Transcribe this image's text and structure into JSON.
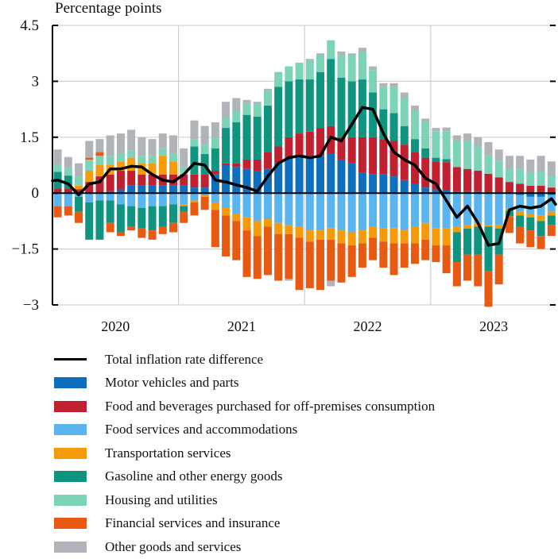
{
  "chart_data": {
    "type": "bar",
    "subtype": "stacked-bar-with-line",
    "title": "",
    "ylabel": "Percentage points",
    "xlabel": "",
    "ylim": [
      -3,
      4.5
    ],
    "yticks": [
      4.5,
      3,
      1.5,
      0,
      -1.5,
      -3
    ],
    "ytick_labels": [
      "4.5",
      "3",
      "1.5",
      "0",
      "−1.5",
      "−3"
    ],
    "x_year_labels": [
      "2020",
      "2021",
      "2022",
      "2023"
    ],
    "frequency": "monthly",
    "x_start": "2020-01",
    "x_end": "2023-12",
    "grid": "vertical year separators and horizontal at y ticks",
    "legend_position": "bottom",
    "series": [
      {
        "name": "Motor vehicles and parts",
        "color": "#0f6fbf",
        "values": [
          0.02,
          0.02,
          0.0,
          0.0,
          0.0,
          0.05,
          0.1,
          0.2,
          0.2,
          0.2,
          0.2,
          0.2,
          0.2,
          0.15,
          0.15,
          0.5,
          0.75,
          0.7,
          0.65,
          0.6,
          0.65,
          0.8,
          0.95,
          1.0,
          1.0,
          1.0,
          1.05,
          0.9,
          0.8,
          0.55,
          0.5,
          0.5,
          0.45,
          0.35,
          0.25,
          0.15,
          0.1,
          0.08,
          0.05,
          0.05,
          0.05,
          0.02,
          0.02,
          -0.02,
          -0.05,
          -0.1,
          -0.1,
          -0.05
        ]
      },
      {
        "name": "Food and beverages purchased for off-premises consumption",
        "color": "#c0202f",
        "values": [
          0.1,
          0.1,
          0.1,
          0.3,
          0.45,
          0.45,
          0.5,
          0.4,
          0.3,
          0.3,
          0.3,
          0.3,
          0.3,
          0.35,
          0.35,
          0.1,
          0.05,
          0.1,
          0.25,
          0.3,
          0.45,
          0.45,
          0.55,
          0.6,
          0.65,
          0.75,
          0.75,
          0.6,
          0.7,
          0.95,
          1.0,
          0.95,
          0.95,
          0.95,
          0.85,
          0.8,
          0.75,
          0.75,
          0.65,
          0.6,
          0.55,
          0.5,
          0.4,
          0.3,
          0.25,
          0.2,
          0.2,
          0.15
        ]
      },
      {
        "name": "Food services and accommodations",
        "color": "#5ab4f0",
        "values": [
          -0.35,
          -0.35,
          -0.1,
          -0.25,
          -0.2,
          -0.2,
          -0.3,
          -0.35,
          -0.4,
          -0.35,
          -0.35,
          -0.3,
          -0.3,
          -0.2,
          -0.05,
          -0.25,
          -0.4,
          -0.55,
          -0.65,
          -0.75,
          -0.7,
          -0.8,
          -0.85,
          -0.9,
          -1.0,
          -1.0,
          -0.95,
          -1.0,
          -1.05,
          -1.0,
          -0.9,
          -0.95,
          -0.95,
          -1.0,
          -0.9,
          -0.8,
          -0.95,
          -0.95,
          -0.9,
          -0.85,
          -0.8,
          -0.85,
          -0.85,
          -0.4,
          -0.45,
          -0.45,
          -0.5,
          -0.45
        ]
      },
      {
        "name": "Transportation services",
        "color": "#f59b0a",
        "values": [
          0.0,
          0.0,
          0.1,
          0.3,
          0.3,
          0.25,
          0.25,
          0.35,
          0.3,
          0.3,
          0.5,
          0.35,
          -0.05,
          -0.05,
          -0.05,
          -0.2,
          -0.2,
          -0.2,
          -0.35,
          -0.4,
          -0.2,
          -0.3,
          -0.25,
          -0.3,
          -0.3,
          -0.25,
          -0.3,
          -0.35,
          -0.35,
          -0.35,
          -0.3,
          -0.35,
          -0.4,
          -0.35,
          -0.45,
          -0.45,
          -0.45,
          -0.45,
          -0.15,
          -0.1,
          -0.1,
          -0.05,
          -0.1,
          -0.05,
          -0.1,
          -0.1,
          -0.15,
          -0.1
        ]
      },
      {
        "name": "Gasoline and other energy goods",
        "color": "#0f9480",
        "values": [
          0.45,
          0.35,
          -0.4,
          -1.0,
          -1.05,
          -0.6,
          -0.75,
          -0.55,
          -0.55,
          -0.65,
          -0.55,
          -0.5,
          -0.15,
          0.75,
          0.55,
          0.6,
          0.95,
          1.1,
          1.2,
          1.15,
          1.25,
          1.6,
          1.5,
          1.45,
          1.4,
          1.5,
          1.8,
          1.6,
          1.5,
          1.55,
          1.2,
          0.8,
          0.75,
          0.5,
          0.35,
          0.25,
          0.1,
          0.08,
          -0.8,
          -0.7,
          -0.75,
          -1.2,
          -0.7,
          -0.15,
          -0.3,
          -0.35,
          -0.4,
          -0.25
        ]
      },
      {
        "name": "Housing and utilities",
        "color": "#7dd3b8",
        "values": [
          0.2,
          0.2,
          0.25,
          0.3,
          0.25,
          0.25,
          0.2,
          0.2,
          0.2,
          0.2,
          0.2,
          0.2,
          0.2,
          0.2,
          0.25,
          0.3,
          0.3,
          0.3,
          0.3,
          0.35,
          0.4,
          0.4,
          0.4,
          0.45,
          0.5,
          0.45,
          0.5,
          0.6,
          0.7,
          0.75,
          0.6,
          0.6,
          0.7,
          0.75,
          0.75,
          0.7,
          0.7,
          0.75,
          0.7,
          0.75,
          0.65,
          0.5,
          0.45,
          0.35,
          0.4,
          0.35,
          0.4,
          0.3
        ]
      },
      {
        "name": "Financial services and insurance",
        "color": "#e85a12",
        "values": [
          -0.3,
          -0.25,
          -0.3,
          0.05,
          0.1,
          -0.25,
          -0.1,
          -0.1,
          -0.25,
          -0.25,
          -0.2,
          -0.25,
          -0.3,
          -0.35,
          -0.35,
          -1.0,
          -1.1,
          -1.05,
          -1.25,
          -1.15,
          -1.3,
          -1.25,
          -1.2,
          -1.4,
          -1.25,
          -1.35,
          -1.1,
          -1.05,
          -0.85,
          -0.65,
          -0.6,
          -0.7,
          -0.85,
          -0.65,
          -0.55,
          -0.55,
          -0.45,
          -0.75,
          -0.65,
          -0.7,
          -0.85,
          -0.95,
          -0.8,
          -0.45,
          -0.45,
          -0.45,
          -0.35,
          -0.3
        ]
      },
      {
        "name": "Other goods and services",
        "color": "#b0b4b8",
        "values": [
          0.4,
          0.3,
          0.35,
          0.45,
          0.35,
          0.55,
          0.55,
          0.55,
          0.5,
          0.45,
          0.4,
          0.5,
          0.5,
          0.5,
          0.5,
          0.4,
          0.4,
          0.35,
          0.1,
          0.05,
          0.05,
          0.0,
          -0.05,
          0.0,
          0.05,
          0.05,
          -0.15,
          0.1,
          0.05,
          0.1,
          0.1,
          0.1,
          0.1,
          0.15,
          0.15,
          0.1,
          0.1,
          0.1,
          0.15,
          0.2,
          0.25,
          0.35,
          0.3,
          0.35,
          0.35,
          0.35,
          0.4,
          0.4
        ]
      }
    ],
    "line": {
      "name": "Total inflation rate difference",
      "color": "#000000",
      "values": [
        0.35,
        0.25,
        -0.05,
        0.25,
        0.3,
        0.65,
        0.65,
        0.72,
        0.7,
        0.5,
        0.35,
        0.3,
        0.5,
        0.8,
        0.75,
        0.35,
        0.3,
        0.22,
        0.15,
        0.05,
        0.45,
        0.8,
        0.95,
        1.0,
        0.95,
        1.0,
        1.5,
        1.4,
        1.85,
        2.3,
        2.25,
        1.6,
        1.1,
        0.9,
        0.75,
        0.4,
        0.25,
        -0.2,
        -0.65,
        -0.35,
        -0.8,
        -1.4,
        -1.35,
        -0.45,
        -0.35,
        -0.4,
        -0.35,
        -0.15
      ]
    },
    "legend": [
      {
        "label": "Total inflation rate difference",
        "kind": "line",
        "color": "#000000"
      },
      {
        "label": "Motor vehicles and parts",
        "kind": "bar",
        "color": "#0f6fbf"
      },
      {
        "label": "Food and beverages purchased for off-premises consumption",
        "kind": "bar",
        "color": "#c0202f"
      },
      {
        "label": "Food services and accommodations",
        "kind": "bar",
        "color": "#5ab4f0"
      },
      {
        "label": "Transportation services",
        "kind": "bar",
        "color": "#f59b0a"
      },
      {
        "label": "Gasoline and other energy goods",
        "kind": "bar",
        "color": "#0f9480"
      },
      {
        "label": "Housing and utilities",
        "kind": "bar",
        "color": "#7dd3b8"
      },
      {
        "label": "Financial services and insurance",
        "kind": "bar",
        "color": "#e85a12"
      },
      {
        "label": "Other goods and services",
        "kind": "bar",
        "color": "#b0b4b8"
      }
    ]
  }
}
